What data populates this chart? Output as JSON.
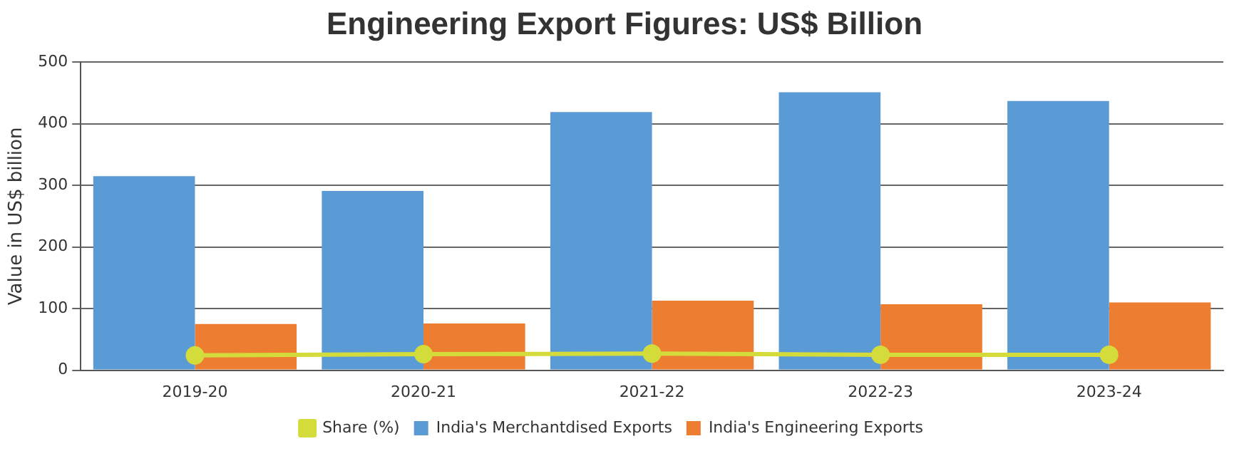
{
  "chart_data": {
    "type": "bar",
    "title": "Engineering Export Figures: US$ Billion",
    "ylabel": "Value in US$ billion",
    "categories": [
      "2019-20",
      "2020-21",
      "2021-22",
      "2022-23",
      "2023-24"
    ],
    "series": [
      {
        "name": "India's Merchantdised Exports",
        "color": "#5b9bd5",
        "values": [
          315,
          291,
          419,
          451,
          437
        ]
      },
      {
        "name": "India's Engineering Exports",
        "color": "#ed7d31",
        "values": [
          75,
          76,
          113,
          107,
          110
        ]
      },
      {
        "name": "Share (%)",
        "type": "line",
        "color": "#d4dc3c",
        "marker": "circle",
        "values": [
          24,
          26,
          27,
          25,
          25
        ]
      }
    ],
    "ylim": [
      0,
      500
    ],
    "yticks": [
      0,
      100,
      200,
      300,
      400,
      500
    ],
    "grid": "y",
    "legend": "bottom"
  }
}
